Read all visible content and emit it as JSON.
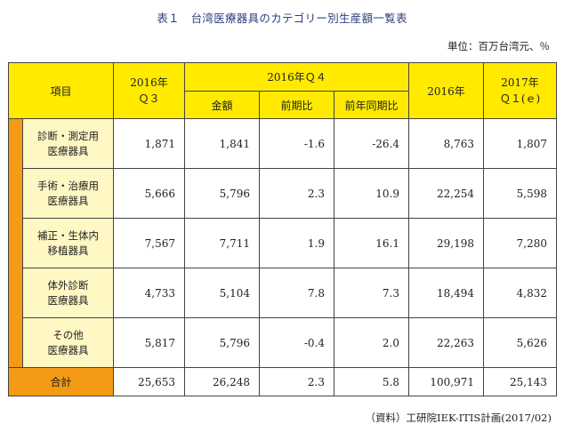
{
  "title": "表１　台湾医療器具のカテゴリー別生産額一覧表",
  "unit": "単位：百万台湾元、％",
  "source": "（資料）工研院IEK-ITIS計画(2017/02)",
  "header": {
    "item": "項目",
    "q3_line1": "2016年",
    "q3_line2": "Ｑ３",
    "q4_group": "2016年Ｑ４",
    "q4_amount": "金額",
    "q4_qoq": "前期比",
    "q4_yoy": "前年同期比",
    "year2016": "2016年",
    "q1_line1": "2017年",
    "q1_line2": "Ｑ１(ｅ)"
  },
  "rows": [
    {
      "label1": "診断・測定用",
      "label2": "医療器具",
      "q3": "1,871",
      "q4_amount": "1,841",
      "q4_qoq": "-1.6",
      "q4_yoy": "-26.4",
      "y2016": "8,763",
      "q1": "1,807"
    },
    {
      "label1": "手術・治療用",
      "label2": "医療器具",
      "q3": "5,666",
      "q4_amount": "5,796",
      "q4_qoq": "2.3",
      "q4_yoy": "10.9",
      "y2016": "22,254",
      "q1": "5,598"
    },
    {
      "label1": "補正・生体内",
      "label2": "移植器具",
      "q3": "7,567",
      "q4_amount": "7,711",
      "q4_qoq": "1.9",
      "q4_yoy": "16.1",
      "y2016": "29,198",
      "q1": "7,280"
    },
    {
      "label1": "体外診断",
      "label2": "医療器具",
      "q3": "4,733",
      "q4_amount": "5,104",
      "q4_qoq": "7.8",
      "q4_yoy": "7.3",
      "y2016": "18,494",
      "q1": "4,832"
    },
    {
      "label1": "その他",
      "label2": "医療器具",
      "q3": "5,817",
      "q4_amount": "5,796",
      "q4_qoq": "-0.4",
      "q4_yoy": "2.0",
      "y2016": "22,263",
      "q1": "5,626"
    }
  ],
  "total": {
    "label": "合計",
    "q3": "25,653",
    "q4_amount": "26,248",
    "q4_qoq": "2.3",
    "q4_yoy": "5.8",
    "y2016": "100,971",
    "q1": "25,143"
  },
  "colors": {
    "header_bg": "#ffea00",
    "accent_orange": "#f49a14",
    "row_label_bg": "#fff7c4",
    "title_color": "#2c3f80"
  }
}
